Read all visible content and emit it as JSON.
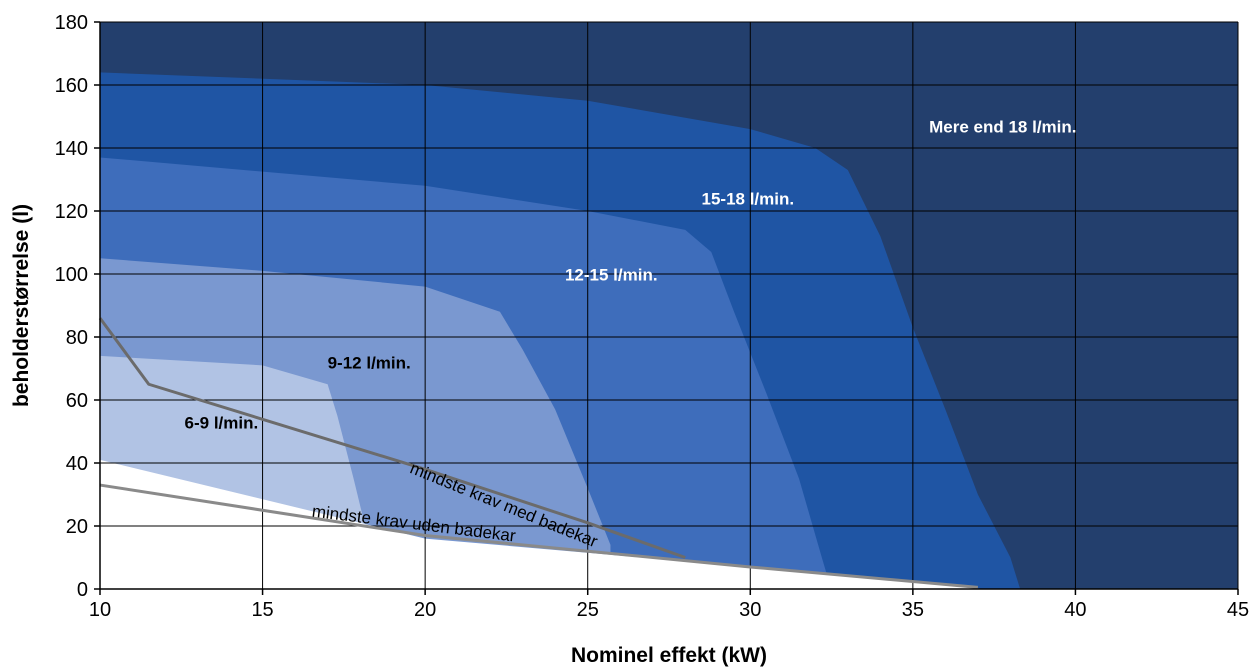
{
  "chart_data": {
    "type": "area",
    "title": "",
    "xlabel": "Nominel effekt (kW)",
    "ylabel": "beholderstørrelse (l)",
    "xlim": [
      10,
      45
    ],
    "ylim": [
      0,
      180
    ],
    "xticks": [
      "10",
      "15",
      "20",
      "25",
      "30",
      "35",
      "40",
      "45"
    ],
    "yticks": [
      "0",
      "20",
      "40",
      "60",
      "80",
      "100",
      "120",
      "140",
      "160",
      "180"
    ],
    "grid": true,
    "series": [
      {
        "name": "Mere end 18 l/min.",
        "color": "#233f6d",
        "boundary": []
      },
      {
        "name": "15-18 l/min.",
        "color": "#1f55a4",
        "boundary": [
          [
            10,
            164
          ],
          [
            20,
            160
          ],
          [
            25,
            155
          ],
          [
            30,
            146
          ],
          [
            32,
            140
          ],
          [
            33,
            133
          ],
          [
            34,
            112
          ],
          [
            35,
            83
          ],
          [
            36,
            57
          ],
          [
            37,
            30
          ],
          [
            38,
            10
          ],
          [
            38.3,
            0
          ]
        ]
      },
      {
        "name": "12-15 l/min.",
        "color": "#3e6dbb",
        "boundary": [
          [
            10,
            137
          ],
          [
            20,
            128
          ],
          [
            25,
            120
          ],
          [
            28,
            114
          ],
          [
            28.8,
            107
          ],
          [
            29.5,
            88
          ],
          [
            30.5,
            62
          ],
          [
            31.5,
            35
          ],
          [
            32.2,
            10
          ],
          [
            32.4,
            3
          ]
        ]
      },
      {
        "name": "9-12 l/min.",
        "color": "#7a98d0",
        "boundary": [
          [
            10,
            105
          ],
          [
            15,
            101
          ],
          [
            20,
            96
          ],
          [
            22.3,
            88
          ],
          [
            23,
            76
          ],
          [
            24,
            57
          ],
          [
            25,
            32
          ],
          [
            25.7,
            14
          ]
        ]
      },
      {
        "name": "6-9 l/min.",
        "color": "#b1c3e4",
        "boundary": [
          [
            10,
            74
          ],
          [
            15,
            71
          ],
          [
            17,
            65
          ],
          [
            17.3,
            55
          ],
          [
            17.8,
            35
          ],
          [
            18.2,
            18
          ]
        ]
      },
      {
        "name": "white",
        "color": "#ffffff",
        "boundary": [
          [
            10,
            41
          ],
          [
            20,
            16
          ],
          [
            30,
            7
          ],
          [
            37.2,
            0
          ]
        ]
      }
    ],
    "lines": [
      {
        "name": "mindste krav med badekar",
        "color": "#6b6b6b",
        "points": [
          [
            10,
            86
          ],
          [
            11.5,
            65
          ],
          [
            20,
            38
          ],
          [
            25,
            21
          ],
          [
            28,
            10
          ]
        ]
      },
      {
        "name": "mindste krav uden badekar",
        "color": "#8a8a8a",
        "points": [
          [
            10,
            33
          ],
          [
            20,
            17
          ],
          [
            30,
            7
          ],
          [
            37,
            0.5
          ]
        ]
      }
    ],
    "annotations": [
      {
        "text": "Mere end 18 l/min.",
        "x": 35.5,
        "y": 145,
        "color": "#ffffff"
      },
      {
        "text": "15-18 l/min.",
        "x": 28.5,
        "y": 122,
        "color": "#ffffff"
      },
      {
        "text": "12-15 l/min.",
        "x": 24.3,
        "y": 98,
        "color": "#ffffff"
      },
      {
        "text": "9-12 l/min.",
        "x": 17,
        "y": 70,
        "color": "#000000"
      },
      {
        "text": "6-9 l/min.",
        "x": 12.6,
        "y": 51,
        "color": "#000000"
      },
      {
        "text": "mindste krav med badekar",
        "x": 19.5,
        "y": 37,
        "color": "#000000",
        "angle": 22
      },
      {
        "text": "mindste krav uden badekar",
        "x": 16.5,
        "y": 23,
        "color": "#000000",
        "angle": 7
      }
    ]
  }
}
